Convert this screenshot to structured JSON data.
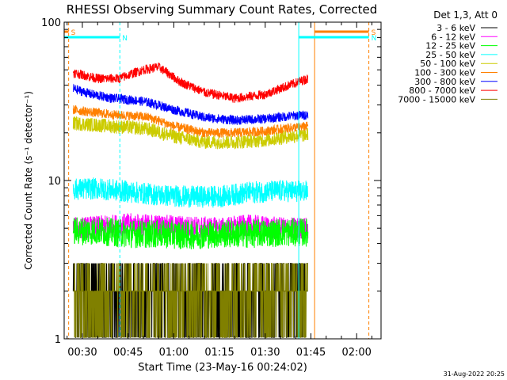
{
  "chart_data": {
    "type": "line",
    "title": "RHESSI Observing Summary Count Rates, Corrected",
    "xlabel": "Start Time (23-May-16 00:24:02)",
    "ylabel": "Corrected Count Rate (s⁻¹ detector⁻¹)",
    "x_ticks": [
      "00:30",
      "00:45",
      "01:00",
      "01:15",
      "01:30",
      "01:45",
      "02:00"
    ],
    "x_tick_minutes": [
      30,
      45,
      60,
      75,
      90,
      105,
      120
    ],
    "xlim_minutes": [
      24.03,
      128
    ],
    "y_scale": "log",
    "ylim": [
      1,
      100
    ],
    "y_ticks": [
      "1",
      "10",
      "100"
    ],
    "legend_header": "Det 1,3, Att 0",
    "legend_position": "top-right, outside plot",
    "footer_date": "31-Aug-2022 20:25",
    "flags": [
      {
        "label": "S",
        "color": "#ff8000",
        "start": 24.03,
        "end": 25.5,
        "row": 1
      },
      {
        "label": "S",
        "color": "#ff8000",
        "start": 106.2,
        "end": 124.0,
        "row": 1
      },
      {
        "label": "N",
        "color": "#00ffff",
        "start": 24.03,
        "end": 42.3,
        "row": 2
      },
      {
        "label": "N",
        "color": "#00ffff",
        "start": 101.0,
        "end": 124.0,
        "row": 2
      }
    ],
    "vertical_markers": [
      {
        "color": "#ff8000",
        "x": 25.5,
        "style": "dashed"
      },
      {
        "color": "#00ffff",
        "x": 42.3,
        "style": "dashed"
      },
      {
        "color": "#00ffff",
        "x": 101.0,
        "style": "solid"
      },
      {
        "color": "#ff8000",
        "x": 106.2,
        "style": "solid"
      },
      {
        "color": "#ff8000",
        "x": 124.0,
        "style": "dashed"
      }
    ],
    "data_end_minutes": 104.0,
    "series": [
      {
        "name": "3 - 6 keV",
        "color": "#000000",
        "x": [
          27,
          35,
          45,
          55,
          65,
          75,
          85,
          95,
          104
        ],
        "y": [
          1.5,
          1.6,
          2.1,
          2.0,
          1.9,
          2.0,
          2.2,
          1.7,
          1.6
        ],
        "noise": 0.3
      },
      {
        "name": "6 - 12 keV",
        "color": "#ff00ff",
        "x": [
          27,
          35,
          45,
          55,
          65,
          75,
          85,
          95,
          104
        ],
        "y": [
          5.0,
          5.1,
          5.3,
          5.2,
          5.1,
          5.0,
          5.2,
          5.0,
          5.0
        ],
        "noise": 0.07
      },
      {
        "name": "12 - 25 keV",
        "color": "#00ff00",
        "x": [
          27,
          35,
          45,
          55,
          65,
          75,
          85,
          95,
          104
        ],
        "y": [
          4.8,
          4.8,
          4.6,
          4.6,
          4.5,
          4.6,
          4.6,
          4.7,
          4.7
        ],
        "noise": 0.09
      },
      {
        "name": "25 - 50 keV",
        "color": "#00ffff",
        "x": [
          27,
          35,
          45,
          55,
          65,
          75,
          85,
          95,
          104
        ],
        "y": [
          8.8,
          8.9,
          8.5,
          8.1,
          7.9,
          7.9,
          8.4,
          8.6,
          8.5
        ],
        "noise": 0.07
      },
      {
        "name": "50 - 100 keV",
        "color": "#cccc00",
        "x": [
          27,
          33,
          40,
          48,
          52,
          60,
          70,
          80,
          90,
          98,
          104
        ],
        "y": [
          23,
          22.5,
          22,
          21.5,
          21,
          19,
          17.5,
          17.5,
          18,
          19,
          19.5
        ],
        "noise": 0.045
      },
      {
        "name": "100 - 300 keV",
        "color": "#ff8000",
        "x": [
          27,
          33,
          40,
          48,
          52,
          60,
          70,
          80,
          90,
          98,
          104
        ],
        "y": [
          28,
          27,
          26,
          25.5,
          25,
          22,
          20,
          20,
          20.5,
          21.5,
          22
        ],
        "noise": 0.03
      },
      {
        "name": "300 - 800 keV",
        "color": "#0000ff",
        "x": [
          27,
          33,
          40,
          48,
          52,
          60,
          70,
          80,
          90,
          98,
          104
        ],
        "y": [
          38,
          35,
          33,
          32,
          31,
          28,
          25,
          24,
          24.5,
          25.5,
          26
        ],
        "noise": 0.03
      },
      {
        "name": "800 - 7000 keV",
        "color": "#ff0000",
        "x": [
          27,
          35,
          42,
          50,
          55,
          62,
          70,
          80,
          90,
          98,
          104
        ],
        "y": [
          48,
          44,
          44,
          50,
          52,
          42,
          36,
          33,
          35,
          40,
          44
        ],
        "noise": 0.03
      },
      {
        "name": "7000 - 15000 keV",
        "color": "#808000",
        "x": [
          27,
          35,
          45,
          55,
          65,
          75,
          85,
          95,
          104
        ],
        "y": [
          1.3,
          1.4,
          1.6,
          1.5,
          1.4,
          1.4,
          1.5,
          1.3,
          1.3
        ],
        "noise": 0.2
      }
    ]
  }
}
